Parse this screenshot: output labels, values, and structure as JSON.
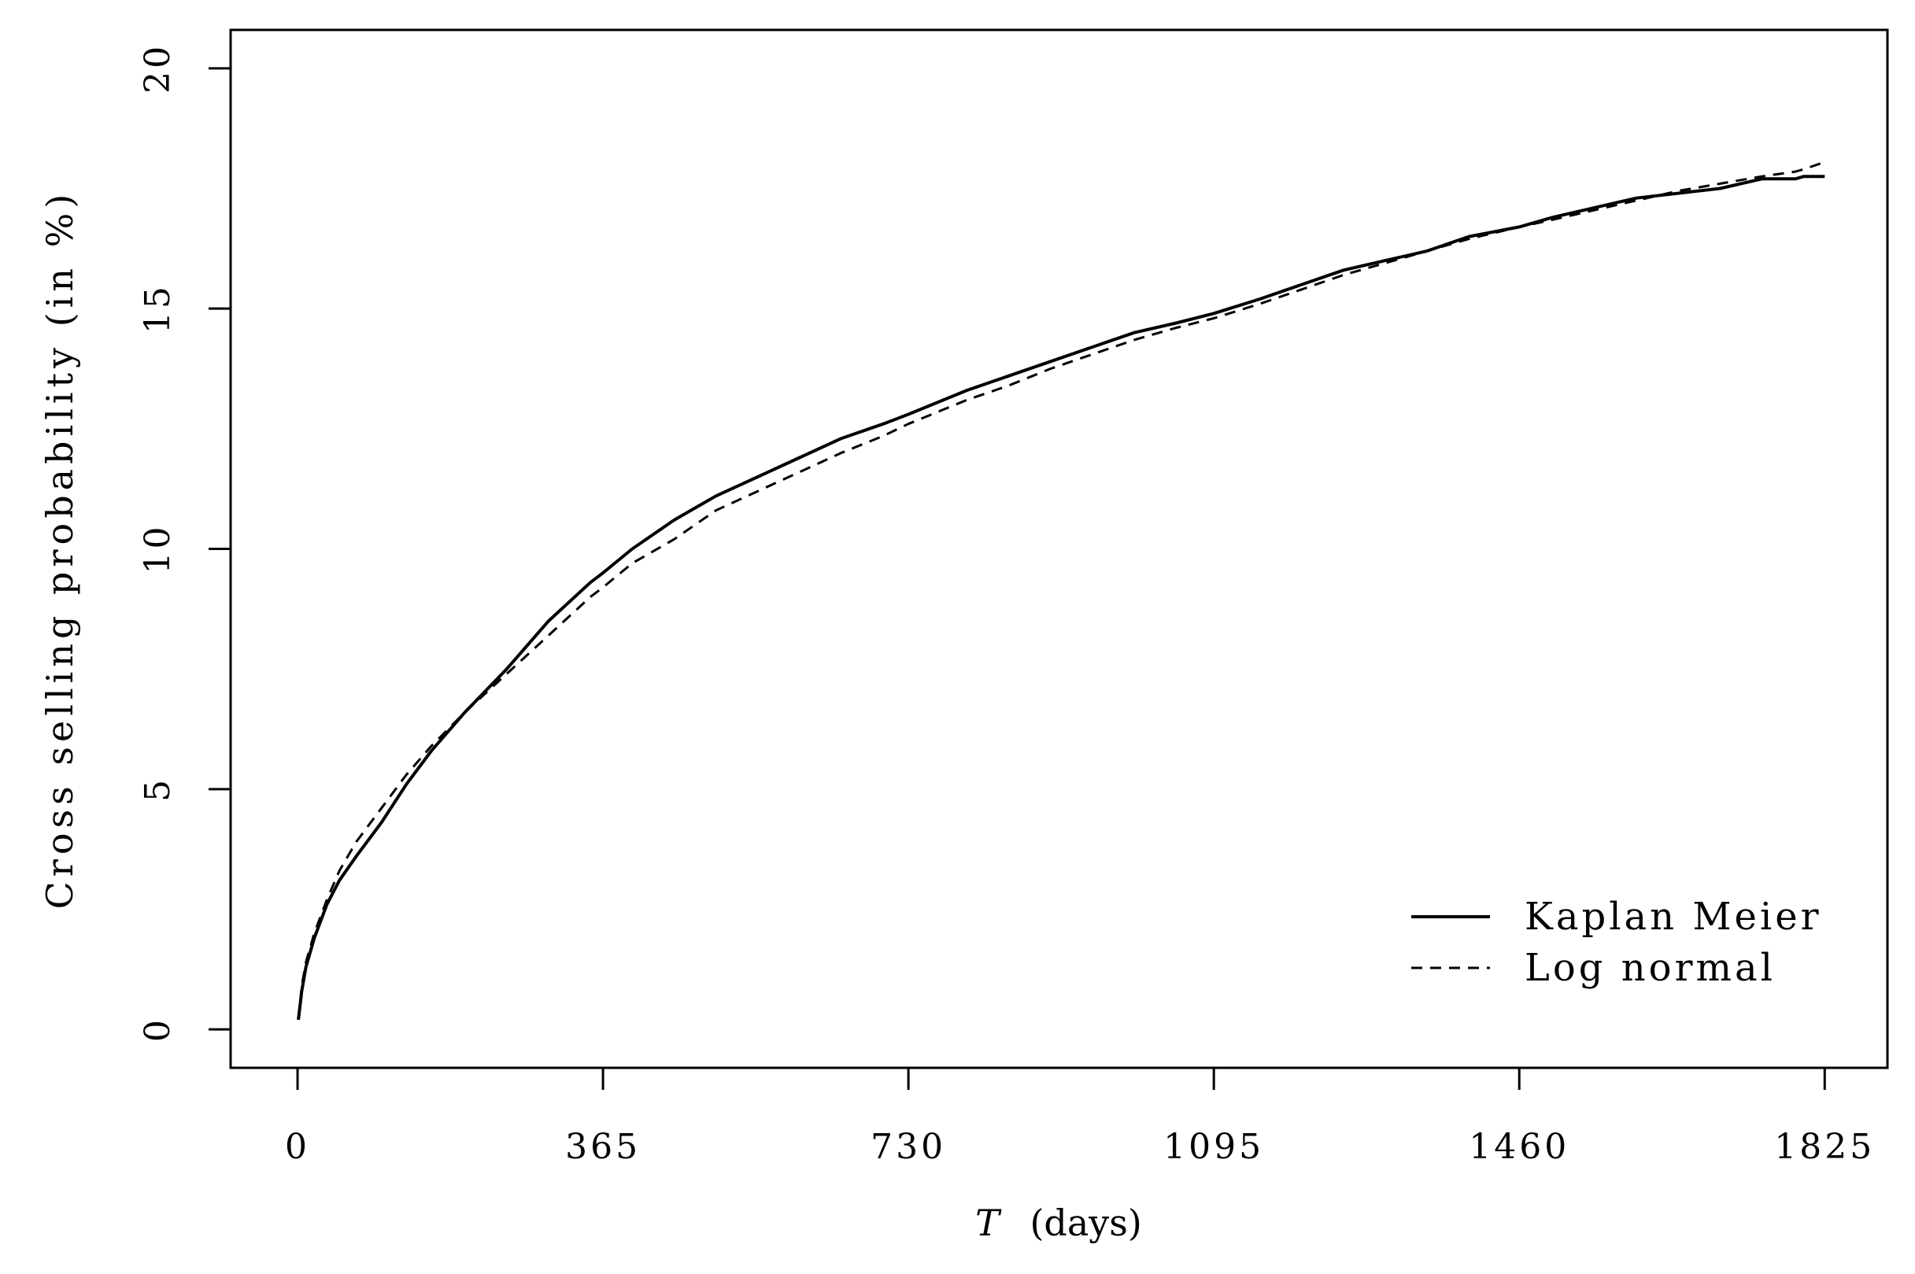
{
  "chart_data": {
    "type": "line",
    "title": "",
    "xlabel_var": "T",
    "xlabel_unit": "(days)",
    "ylabel": "Cross selling probability (in %)",
    "xlim": [
      -80,
      1900
    ],
    "ylim": [
      -0.8,
      20.8
    ],
    "x_ticks": [
      0,
      365,
      730,
      1095,
      1460,
      1825
    ],
    "x_tick_labels": [
      "0",
      "365",
      "730",
      "1095",
      "1460",
      "1825"
    ],
    "y_ticks": [
      0,
      5,
      10,
      15,
      20
    ],
    "y_tick_labels": [
      "0",
      "5",
      "10",
      "15",
      "20"
    ],
    "grid": false,
    "legend_position": "bottom-right",
    "series": [
      {
        "name": "Kaplan Meier",
        "style": "solid",
        "color": "#000000",
        "x": [
          1,
          5,
          10,
          20,
          35,
          50,
          70,
          100,
          130,
          160,
          200,
          250,
          300,
          350,
          365,
          400,
          450,
          500,
          550,
          600,
          650,
          700,
          730,
          800,
          850,
          900,
          950,
          1000,
          1050,
          1095,
          1150,
          1200,
          1250,
          1300,
          1350,
          1400,
          1460,
          1500,
          1550,
          1600,
          1650,
          1700,
          1750,
          1790,
          1800,
          1825
        ],
        "y": [
          0.2,
          0.8,
          1.3,
          1.9,
          2.6,
          3.1,
          3.6,
          4.3,
          5.1,
          5.8,
          6.6,
          7.5,
          8.5,
          9.3,
          9.5,
          10.0,
          10.6,
          11.1,
          11.5,
          11.9,
          12.3,
          12.6,
          12.8,
          13.3,
          13.6,
          13.9,
          14.2,
          14.5,
          14.7,
          14.9,
          15.2,
          15.5,
          15.8,
          16.0,
          16.2,
          16.5,
          16.7,
          16.9,
          17.1,
          17.3,
          17.4,
          17.5,
          17.7,
          17.7,
          17.75,
          17.75
        ]
      },
      {
        "name": "Log normal",
        "style": "dashed",
        "color": "#000000",
        "x": [
          1,
          5,
          10,
          20,
          35,
          50,
          70,
          100,
          130,
          160,
          200,
          250,
          300,
          350,
          365,
          400,
          450,
          500,
          550,
          600,
          650,
          700,
          730,
          800,
          850,
          900,
          950,
          1000,
          1050,
          1095,
          1150,
          1200,
          1250,
          1300,
          1350,
          1400,
          1460,
          1500,
          1550,
          1600,
          1650,
          1700,
          1750,
          1790,
          1800,
          1825
        ],
        "y": [
          0.2,
          0.9,
          1.4,
          2.0,
          2.7,
          3.3,
          3.9,
          4.6,
          5.3,
          5.9,
          6.6,
          7.4,
          8.2,
          9.0,
          9.2,
          9.7,
          10.2,
          10.8,
          11.2,
          11.6,
          12.0,
          12.35,
          12.6,
          13.1,
          13.4,
          13.75,
          14.05,
          14.35,
          14.6,
          14.8,
          15.1,
          15.4,
          15.7,
          15.95,
          16.2,
          16.45,
          16.7,
          16.85,
          17.05,
          17.25,
          17.45,
          17.6,
          17.75,
          17.85,
          17.9,
          18.05
        ]
      }
    ]
  }
}
